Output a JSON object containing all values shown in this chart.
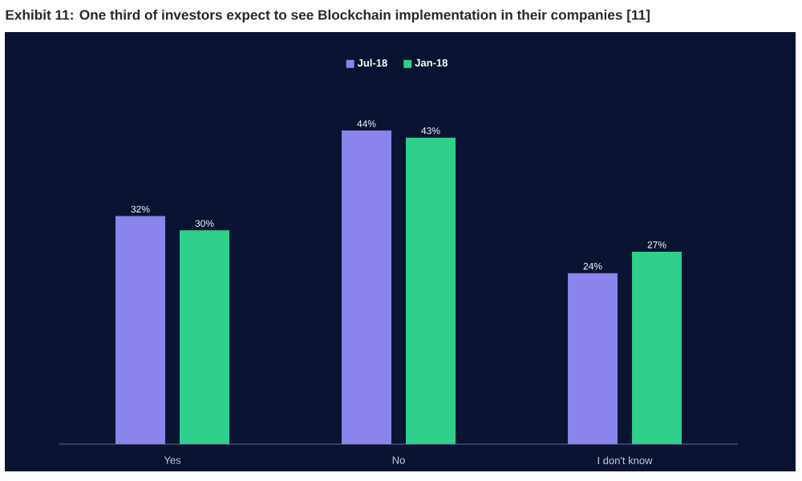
{
  "chart_data": {
    "type": "bar",
    "title": "Exhibit 11: One third of investors expect to see Blockchain implementation in their companies [11]",
    "categories": [
      "Yes",
      "No",
      "I don't know"
    ],
    "series": [
      {
        "name": "Jul-18",
        "color": "#8a84ec",
        "values": [
          32,
          44,
          24
        ],
        "value_labels": [
          "32%",
          "44%",
          "24%"
        ]
      },
      {
        "name": "Jan-18",
        "color": "#2fcf8c",
        "values": [
          30,
          43,
          27
        ],
        "value_labels": [
          "30%",
          "43%",
          "27%"
        ]
      }
    ],
    "legend": "top",
    "grid": false
  }
}
